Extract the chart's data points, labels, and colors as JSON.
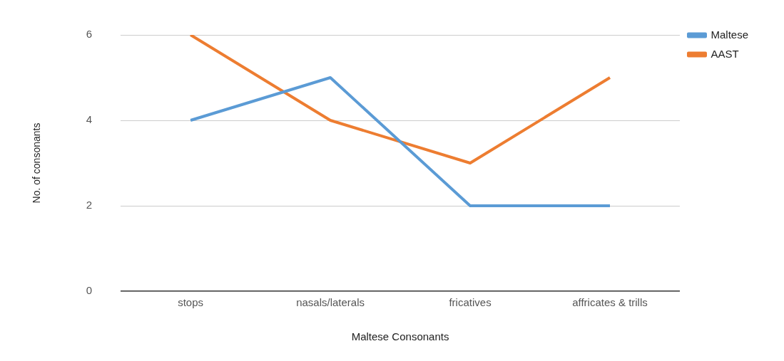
{
  "chart_data": {
    "type": "line",
    "xlabel": "Maltese Consonants",
    "ylabel": "No. of consonants",
    "categories": [
      "stops",
      "nasals/laterals",
      "fricatives",
      "affricates & trills"
    ],
    "series": [
      {
        "name": "Maltese",
        "color": "#5b9bd5",
        "values": [
          4,
          5,
          2,
          2
        ]
      },
      {
        "name": "AAST",
        "color": "#ed7d31",
        "values": [
          6,
          4,
          3,
          5
        ]
      }
    ],
    "ylim": [
      0,
      6
    ],
    "yticks": [
      0,
      2,
      4,
      6
    ],
    "grid": "y",
    "legend": "top right",
    "marker": "none",
    "line_style": "solid"
  }
}
